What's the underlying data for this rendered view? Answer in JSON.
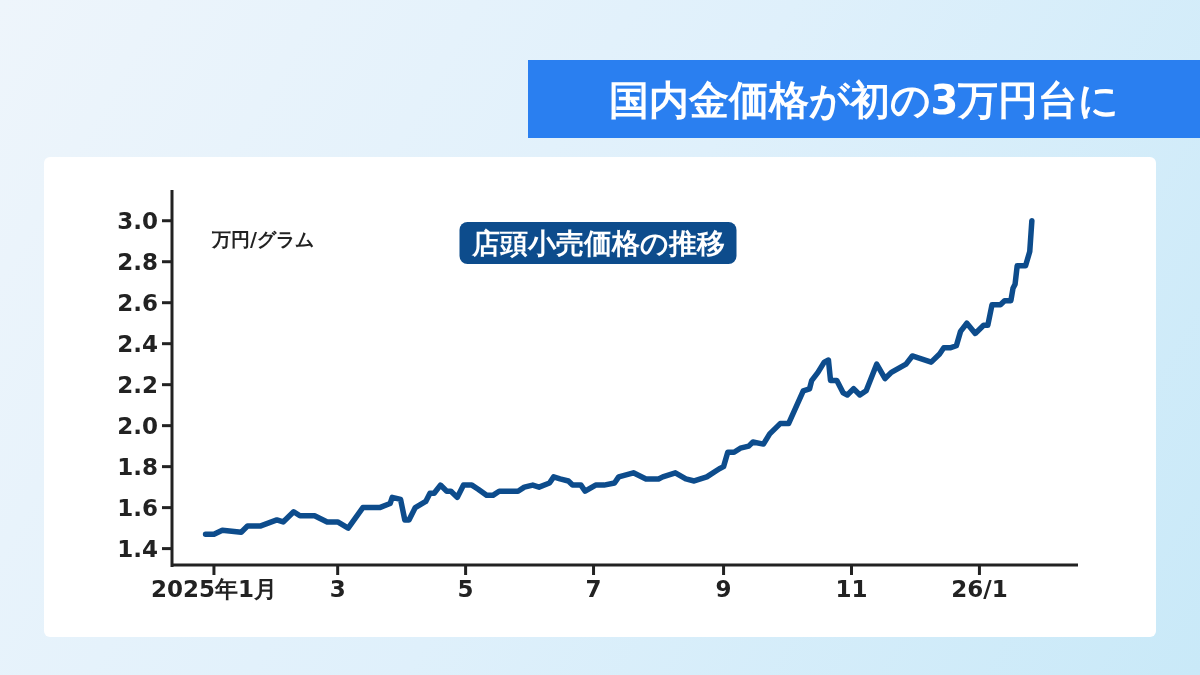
{
  "chart_data": {
    "type": "line",
    "title": "国内金価格が初の3万円台に",
    "subtitle": "店頭小売価格の推移",
    "ylabel": "万円/グラム",
    "x": [
      "2024-12-28",
      "2025-01-01",
      "2025-01-05",
      "2025-01-14",
      "2025-01-17",
      "2025-01-23",
      "2025-01-31",
      "2025-02-03",
      "2025-02-08",
      "2025-02-11",
      "2025-02-18",
      "2025-02-24",
      "2025-03-01",
      "2025-03-06",
      "2025-03-13",
      "2025-03-21",
      "2025-03-26",
      "2025-03-27",
      "2025-03-31",
      "2025-04-02",
      "2025-04-04",
      "2025-04-07",
      "2025-04-12",
      "2025-04-14",
      "2025-04-16",
      "2025-04-19",
      "2025-04-22",
      "2025-04-24",
      "2025-04-27",
      "2025-04-30",
      "2025-05-04",
      "2025-05-07",
      "2025-05-11",
      "2025-05-14",
      "2025-05-17",
      "2025-05-26",
      "2025-05-29",
      "2025-06-02",
      "2025-06-05",
      "2025-06-10",
      "2025-06-12",
      "2025-06-15",
      "2025-06-19",
      "2025-06-21",
      "2025-06-25",
      "2025-06-27",
      "2025-07-02",
      "2025-07-06",
      "2025-07-11",
      "2025-07-13",
      "2025-07-20",
      "2025-07-26",
      "2025-08-01",
      "2025-08-03",
      "2025-08-09",
      "2025-08-14",
      "2025-08-18",
      "2025-08-24",
      "2025-08-30",
      "2025-09-01",
      "2025-09-03",
      "2025-09-06",
      "2025-09-09",
      "2025-09-13",
      "2025-09-15",
      "2025-09-20",
      "2025-09-23",
      "2025-09-28",
      "2025-10-02",
      "2025-10-09",
      "2025-10-12",
      "2025-10-13",
      "2025-10-16",
      "2025-10-19",
      "2025-10-21",
      "2025-10-22",
      "2025-10-25",
      "2025-10-28",
      "2025-10-30",
      "2025-11-02",
      "2025-11-05",
      "2025-11-08",
      "2025-11-13",
      "2025-11-17",
      "2025-11-20",
      "2025-11-27",
      "2025-11-30",
      "2025-12-09",
      "2025-12-13",
      "2025-12-15",
      "2025-12-18",
      "2025-12-21",
      "2025-12-23",
      "2025-12-26",
      "2025-12-30",
      "2026-01-03",
      "2026-01-05",
      "2026-01-07",
      "2026-01-11",
      "2026-01-13",
      "2026-01-16",
      "2026-01-17",
      "2026-01-18",
      "2026-01-19",
      "2026-01-23",
      "2026-01-25",
      "2026-01-26"
    ],
    "series": [
      {
        "color": "#0d4c8c",
        "values": [
          1.47,
          1.47,
          1.49,
          1.48,
          1.51,
          1.51,
          1.54,
          1.53,
          1.58,
          1.56,
          1.56,
          1.53,
          1.53,
          1.5,
          1.6,
          1.6,
          1.62,
          1.65,
          1.64,
          1.54,
          1.54,
          1.6,
          1.63,
          1.67,
          1.67,
          1.71,
          1.68,
          1.68,
          1.65,
          1.71,
          1.71,
          1.69,
          1.66,
          1.66,
          1.68,
          1.68,
          1.7,
          1.71,
          1.7,
          1.72,
          1.75,
          1.74,
          1.73,
          1.71,
          1.71,
          1.68,
          1.71,
          1.71,
          1.72,
          1.75,
          1.77,
          1.74,
          1.74,
          1.75,
          1.77,
          1.74,
          1.73,
          1.75,
          1.79,
          1.8,
          1.87,
          1.87,
          1.89,
          1.9,
          1.92,
          1.91,
          1.96,
          2.01,
          2.01,
          2.17,
          2.18,
          2.22,
          2.26,
          2.31,
          2.32,
          2.22,
          2.22,
          2.16,
          2.15,
          2.18,
          2.15,
          2.17,
          2.3,
          2.23,
          2.26,
          2.3,
          2.34,
          2.31,
          2.35,
          2.38,
          2.38,
          2.39,
          2.46,
          2.5,
          2.45,
          2.49,
          2.49,
          2.59,
          2.59,
          2.61,
          2.61,
          2.67,
          2.69,
          2.78,
          2.78,
          2.85,
          3.0
        ]
      }
    ],
    "xlim": [
      "2024-12-12",
      "2026-02-17"
    ],
    "xticks": [
      {
        "value": "2025-01-01",
        "label": "2025年1月"
      },
      {
        "value": "2025-03-01",
        "label": "3"
      },
      {
        "value": "2025-05-01",
        "label": "5"
      },
      {
        "value": "2025-07-01",
        "label": "7"
      },
      {
        "value": "2025-09-01",
        "label": "9"
      },
      {
        "value": "2025-11-01",
        "label": "11"
      },
      {
        "value": "2026-01-01",
        "label": "26/1"
      }
    ],
    "ylim": [
      1.32,
      3.15
    ],
    "yticks": [
      1.4,
      1.6,
      1.8,
      {
        "value": 2,
        "label": "2.0"
      },
      2.2,
      2.4,
      2.6,
      2.8,
      {
        "value": 3,
        "label": "3.0"
      }
    ],
    "grid": false,
    "marker": "none",
    "line_style": "solid"
  }
}
